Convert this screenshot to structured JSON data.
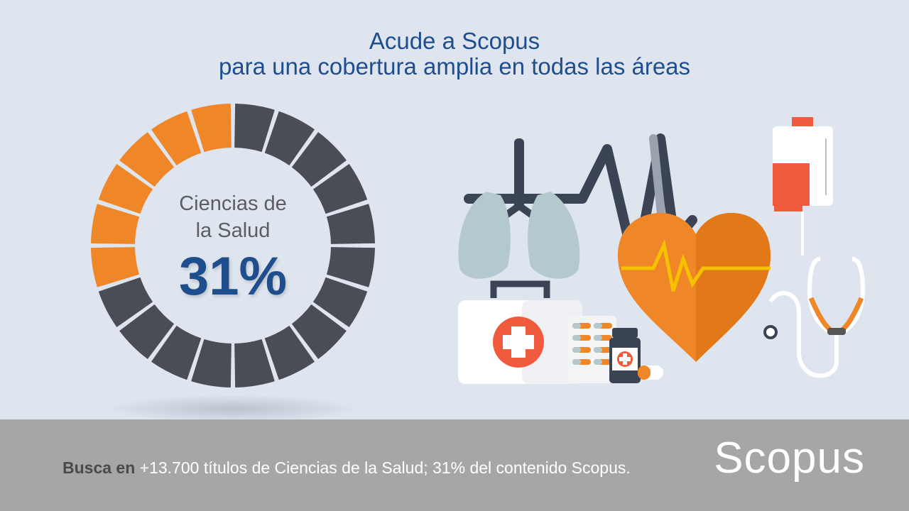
{
  "title": {
    "line1": "Acude a Scopus",
    "line2": "para una cobertura amplia en todas las áreas"
  },
  "donut": {
    "label_line1": "Ciencias de",
    "label_line2": "la Salud",
    "percent_text": "31%",
    "percent_value": 31,
    "segments_total": 20,
    "segments_highlighted": 6
  },
  "footer": {
    "bold": "Busca en",
    "text": " +13.700 títulos de Ciencias de la Salud; 31% del contenido Scopus.",
    "brand": "Scopus"
  },
  "colors": {
    "background": "#dfe5ef",
    "highlight": "#ef8628",
    "segment": "#4a4c56",
    "title": "#1f4e8c",
    "footer_bg": "#a6a6a6"
  },
  "illustration": {
    "icons": [
      "lungs-icon",
      "heartbeat-line-icon",
      "heart-icon",
      "iv-bag-icon",
      "stethoscope-icon",
      "first-aid-kit-icon",
      "pill-blister-icon",
      "medicine-bottle-icon",
      "capsule-icon"
    ]
  }
}
